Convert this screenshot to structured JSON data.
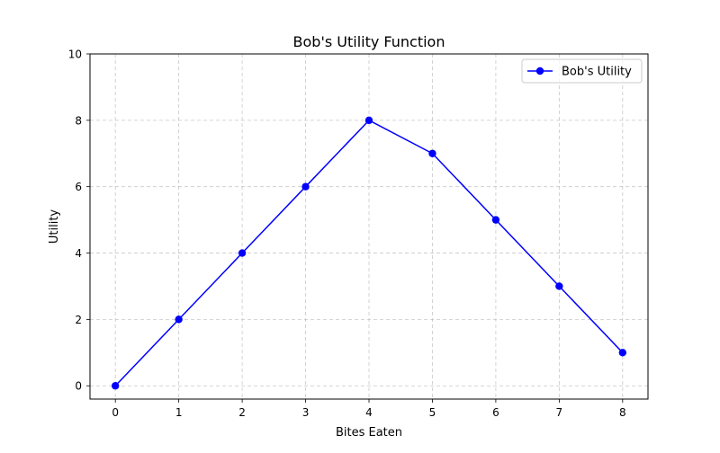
{
  "chart_data": {
    "type": "line",
    "title": "Bob's Utility Function",
    "xlabel": "Bites Eaten",
    "ylabel": "Utility",
    "xlim": [
      -0.4,
      8.4
    ],
    "ylim": [
      -0.4,
      10
    ],
    "x_ticks": [
      0,
      1,
      2,
      3,
      4,
      5,
      6,
      7,
      8
    ],
    "y_ticks": [
      0,
      2,
      4,
      6,
      8,
      10
    ],
    "grid": true,
    "legend_position": "top-right",
    "series": [
      {
        "name": "Bob's Utility",
        "color": "#0000ff",
        "marker": "circle",
        "x": [
          0,
          1,
          2,
          3,
          4,
          5,
          6,
          7,
          8
        ],
        "y": [
          0,
          2,
          4,
          6,
          8,
          7,
          5,
          3,
          1
        ]
      }
    ]
  }
}
